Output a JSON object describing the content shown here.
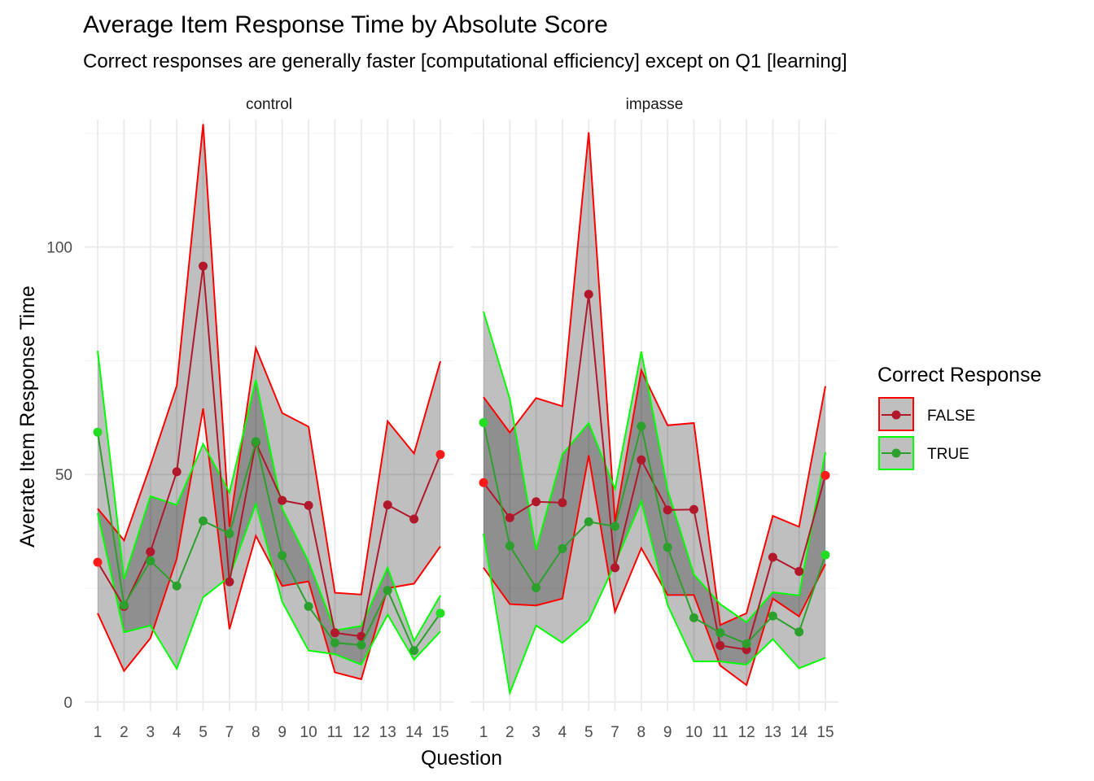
{
  "title": "Average Item Response Time by Absolute Score",
  "subtitle": "Correct responses are generally faster [computational efficiency] except on Q1 [learning]",
  "chart_data": {
    "type": "line",
    "xlabel": "Question",
    "ylabel": "Averate Item Response Time",
    "categories": [
      "1",
      "2",
      "3",
      "4",
      "5",
      "7",
      "8",
      "9",
      "10",
      "11",
      "12",
      "13",
      "14",
      "15"
    ],
    "y_ticks": [
      0,
      50,
      100
    ],
    "ylim": [
      -2,
      128
    ],
    "grid": true,
    "legend": {
      "title": "Correct Response",
      "position": "right",
      "entries": [
        {
          "label": "FALSE",
          "line_color": "#b2182b",
          "ribbon_border": "#ff0000",
          "point_color": "#b2182b"
        },
        {
          "label": "TRUE",
          "line_color": "#2ca02c",
          "ribbon_border": "#00ff00",
          "point_color": "#2ca02c"
        }
      ]
    },
    "panels": [
      {
        "name": "control",
        "series": [
          {
            "name": "FALSE",
            "mean": [
              30.7,
              21,
              33,
              50.6,
              95.8,
              26.4,
              57,
              44.3,
              43.2,
              15.2,
              14.4,
              43.3,
              40.2,
              54.4
            ],
            "lower": [
              19.5,
              6.8,
              14,
              31.5,
              64.5,
              16,
              36.5,
              25.5,
              26.5,
              6.5,
              5,
              25,
              26,
              34.2
            ],
            "upper": [
              42.5,
              35.5,
              52,
              69.5,
              127,
              38.5,
              77.8,
              63.5,
              60.5,
              24,
              23.6,
              61.7,
              54.6,
              74.9
            ]
          },
          {
            "name": "TRUE",
            "mean": [
              59.3,
              21.3,
              31,
              25.5,
              39.8,
              37,
              57.2,
              32.2,
              21,
              13,
              12.5,
              24.5,
              11.3,
              19.5
            ],
            "lower": [
              41.5,
              15.3,
              16.8,
              7.3,
              23,
              27.5,
              43.5,
              22,
              11.3,
              10.5,
              8.2,
              19.2,
              9.3,
              15.5
            ],
            "upper": [
              77.2,
              27,
              45.2,
              43.3,
              56.7,
              46,
              70.8,
              42.5,
              30.8,
              15.7,
              16.7,
              29.5,
              13.4,
              23.4
            ]
          }
        ]
      },
      {
        "name": "impasse",
        "series": [
          {
            "name": "FALSE",
            "mean": [
              48.2,
              40.5,
              44,
              43.8,
              89.6,
              29.5,
              53.2,
              42.2,
              42.3,
              12.4,
              11.5,
              31.8,
              28.7,
              49.8
            ],
            "lower": [
              29.5,
              21.5,
              21.2,
              22.7,
              54.2,
              19.8,
              33.8,
              23.5,
              23.5,
              8,
              3.7,
              22.7,
              18.8,
              30.3
            ],
            "upper": [
              67,
              59.2,
              66.8,
              65,
              125.2,
              39.5,
              72.9,
              60.8,
              61.3,
              16.9,
              19.5,
              40.9,
              38.5,
              69.4
            ]
          },
          {
            "name": "TRUE",
            "mean": [
              61.4,
              34.3,
              25.1,
              33.7,
              39.6,
              38.6,
              60.6,
              34,
              18.5,
              15.2,
              12.8,
              18.9,
              15.4,
              32.3
            ],
            "lower": [
              37,
              2,
              16.8,
              13,
              17.9,
              30.4,
              44.1,
              21.3,
              8.9,
              8.9,
              8.2,
              13.8,
              7.4,
              9.7
            ],
            "upper": [
              85.8,
              66.6,
              33.4,
              54.4,
              61.3,
              46.8,
              77,
              46.6,
              28,
              21.5,
              17.5,
              24.1,
              23.4,
              54.9
            ]
          }
        ]
      }
    ]
  }
}
